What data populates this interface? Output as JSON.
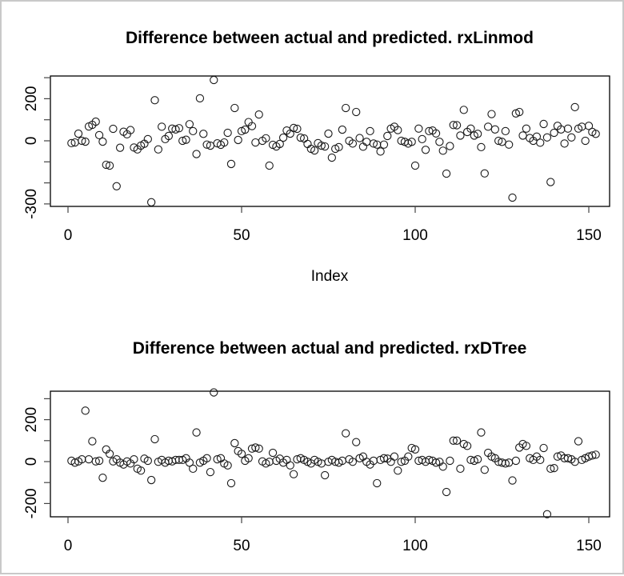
{
  "figure": {
    "background": "#ffffff",
    "border_color": "#c9c9c9",
    "point_color": "#1a1a1a",
    "axis_color": "#000000"
  },
  "chart_data": [
    {
      "type": "scatter",
      "title": "Difference between actual and predicted. rxLinmod",
      "xlabel": "Index",
      "ylabel": "",
      "marker": "open-circle",
      "grid": false,
      "xlim": [
        -5,
        158
      ],
      "ylim": [
        -312,
        308
      ],
      "x_ticks": [
        0,
        50,
        100,
        150
      ],
      "y_ticks": [
        300,
        200,
        100,
        0,
        -100,
        -200,
        -300
      ],
      "y_tick_labels": [
        "",
        "200",
        "",
        "0",
        "",
        "",
        "-300"
      ],
      "x_start_index": 1,
      "values": [
        -11,
        -8,
        34,
        0,
        -4,
        68,
        76,
        91,
        27,
        -4,
        -114,
        -118,
        57,
        -216,
        -33,
        43,
        31,
        51,
        -32,
        -41,
        -23,
        -14,
        8,
        -292,
        193,
        -41,
        67,
        8,
        23,
        58,
        54,
        60,
        0,
        5,
        79,
        46,
        -63,
        202,
        33,
        -18,
        -23,
        289,
        -12,
        -19,
        -8,
        38,
        -110,
        156,
        4,
        46,
        53,
        89,
        70,
        -8,
        125,
        0,
        12,
        -118,
        -19,
        -27,
        -15,
        15,
        49,
        34,
        61,
        57,
        15,
        11,
        -15,
        -38,
        -46,
        -11,
        -23,
        -27,
        34,
        -80,
        -38,
        -30,
        53,
        156,
        0,
        -13,
        137,
        13,
        -28,
        -5,
        46,
        -13,
        -18,
        -51,
        -18,
        23,
        58,
        67,
        51,
        0,
        -5,
        -13,
        -5,
        -118,
        58,
        8,
        -43,
        46,
        49,
        35,
        -5,
        -47,
        -156,
        -25,
        75,
        74,
        25,
        147,
        42,
        58,
        25,
        33,
        -30,
        -155,
        67,
        127,
        54,
        0,
        -5,
        46,
        -18,
        -270,
        130,
        137,
        25,
        58,
        13,
        0,
        20,
        -9,
        80,
        16,
        -196,
        38,
        71,
        54,
        -13,
        58,
        16,
        160,
        58,
        67,
        0,
        71,
        42,
        33
      ]
    },
    {
      "type": "scatter",
      "title": "Difference between actual and predicted. rxDTree",
      "xlabel": "",
      "ylabel": "",
      "marker": "open-circle",
      "grid": false,
      "xlim": [
        -5,
        158
      ],
      "ylim": [
        -263,
        336
      ],
      "x_ticks": [
        0,
        50,
        100,
        150
      ],
      "y_ticks": [
        300,
        200,
        100,
        0,
        -100,
        -200
      ],
      "y_tick_labels": [
        "",
        "200",
        "",
        "0",
        "",
        "-200"
      ],
      "x_start_index": 1,
      "values": [
        4,
        -5,
        1,
        11,
        243,
        11,
        97,
        1,
        4,
        -77,
        58,
        37,
        1,
        11,
        -5,
        -14,
        1,
        -9,
        11,
        -34,
        -43,
        14,
        4,
        -88,
        107,
        -1,
        8,
        -5,
        4,
        1,
        8,
        8,
        8,
        16,
        -5,
        -34,
        139,
        -5,
        4,
        16,
        -50,
        330,
        11,
        16,
        -9,
        -18,
        -103,
        88,
        50,
        37,
        4,
        16,
        62,
        67,
        62,
        1,
        -9,
        -1,
        42,
        4,
        14,
        -5,
        8,
        -18,
        -60,
        11,
        16,
        8,
        -1,
        -9,
        8,
        -1,
        -9,
        -65,
        -1,
        8,
        -1,
        -5,
        4,
        135,
        11,
        -1,
        93,
        16,
        24,
        -1,
        -14,
        4,
        -103,
        8,
        16,
        14,
        -1,
        24,
        -43,
        -1,
        4,
        24,
        65,
        58,
        4,
        8,
        -1,
        8,
        4,
        -5,
        -1,
        -24,
        -145,
        4,
        100,
        100,
        -34,
        84,
        75,
        8,
        4,
        11,
        139,
        -39,
        42,
        24,
        16,
        -1,
        -5,
        -9,
        -5,
        -90,
        4,
        67,
        84,
        75,
        16,
        8,
        24,
        8,
        65,
        -251,
        -34,
        -31,
        24,
        29,
        16,
        16,
        11,
        -1,
        97,
        8,
        16,
        24,
        29,
        33
      ]
    }
  ]
}
